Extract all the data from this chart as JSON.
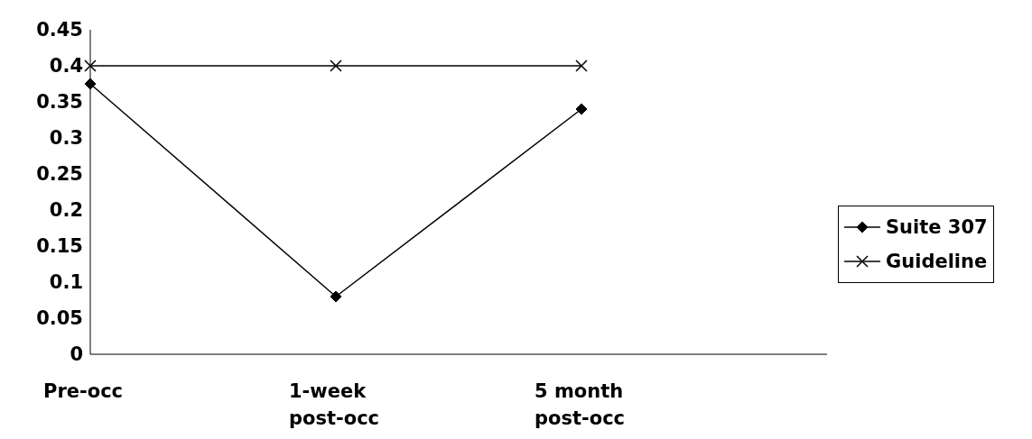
{
  "chart_data": {
    "type": "line",
    "categories": [
      "Pre-occ",
      "1-week post-occ",
      "5 month post-occ",
      null
    ],
    "series": [
      {
        "name": "Suite 307",
        "color": "#000000",
        "marker": "diamond",
        "values": [
          0.375,
          0.08,
          0.34,
          null
        ]
      },
      {
        "name": "Guideline",
        "color": "#000000",
        "marker": "cross",
        "values": [
          0.4,
          0.4,
          0.4,
          null
        ]
      }
    ],
    "ylim": [
      0,
      0.45
    ],
    "yticks": [
      0,
      0.05,
      0.1,
      0.15,
      0.2,
      0.25,
      0.3,
      0.35,
      0.4,
      0.45
    ],
    "grid": false,
    "legend": "right"
  }
}
